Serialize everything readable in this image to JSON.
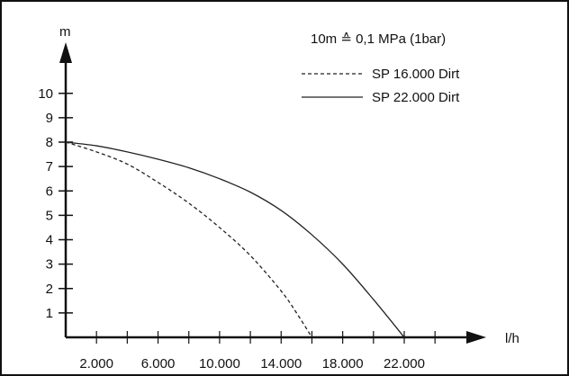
{
  "chart_data": {
    "type": "line",
    "title": "",
    "note": "10m ≙ 0,1 MPa (1bar)",
    "xlabel": "l/h",
    "ylabel": "m",
    "xlim": [
      0,
      25000
    ],
    "ylim": [
      0,
      10.8
    ],
    "x_ticks_minor": [
      2000,
      4000,
      6000,
      8000,
      10000,
      12000,
      14000,
      16000,
      18000,
      20000,
      22000,
      24000
    ],
    "x_tick_labels": [
      {
        "x": 2000,
        "label": "2.000"
      },
      {
        "x": 6000,
        "label": "6.000"
      },
      {
        "x": 10000,
        "label": "10.000"
      },
      {
        "x": 14000,
        "label": "14.000"
      },
      {
        "x": 18000,
        "label": "18.000"
      },
      {
        "x": 22000,
        "label": "22.000"
      }
    ],
    "y_ticks": [
      1,
      2,
      3,
      4,
      5,
      6,
      7,
      8,
      9,
      10
    ],
    "y_tick_labels": [
      "1",
      "2",
      "3",
      "4",
      "5",
      "6",
      "7",
      "8",
      "9",
      "10"
    ],
    "grid": false,
    "legend_position": "top-right",
    "series": [
      {
        "name": "SP 16.000 Dirt",
        "style": "dashed",
        "color": "#222222",
        "points": [
          [
            0,
            8.0
          ],
          [
            2000,
            7.6
          ],
          [
            4000,
            7.1
          ],
          [
            6000,
            6.35
          ],
          [
            8000,
            5.5
          ],
          [
            10000,
            4.5
          ],
          [
            12000,
            3.35
          ],
          [
            14000,
            1.9
          ],
          [
            15000,
            1.0
          ],
          [
            16000,
            0.0
          ]
        ]
      },
      {
        "name": "SP 22.000 Dirt",
        "style": "solid",
        "color": "#222222",
        "points": [
          [
            0,
            8.0
          ],
          [
            2000,
            7.85
          ],
          [
            4000,
            7.6
          ],
          [
            6000,
            7.3
          ],
          [
            8000,
            6.95
          ],
          [
            10000,
            6.5
          ],
          [
            12000,
            5.95
          ],
          [
            14000,
            5.2
          ],
          [
            16000,
            4.2
          ],
          [
            18000,
            3.0
          ],
          [
            20000,
            1.55
          ],
          [
            22000,
            0.0
          ]
        ]
      }
    ]
  }
}
